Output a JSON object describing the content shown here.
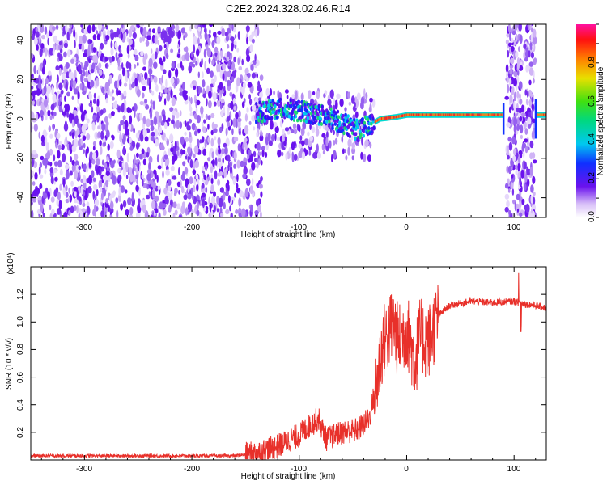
{
  "title": "C2E2.2024.328.02.46.R14",
  "colors": {
    "snr_line": "#e8302a",
    "speckle": "#6a12ee",
    "axis": "#000000"
  },
  "chart_data": [
    {
      "type": "heatmap",
      "title": "C2E2.2024.328.02.46.R14",
      "xlabel": "Height of straight line (km)",
      "ylabel": "Frequency (Hz)",
      "xlim": [
        -350,
        130
      ],
      "ylim": [
        -50,
        48
      ],
      "xticks": [
        -300,
        -200,
        -100,
        0,
        100
      ],
      "yticks": [
        -40,
        -20,
        0,
        20,
        40
      ],
      "colorbar": {
        "label": "Normalized spectral amplitude",
        "range": [
          0,
          1
        ],
        "ticks": [
          "0.0",
          "0.2",
          "0.4",
          "0.6",
          "0.8"
        ],
        "colormap": "rainbow (white/violet at 0 to magenta at 1)"
      },
      "regions": [
        {
          "x": [
            -350,
            -135
          ],
          "description": "broadband noise speckle",
          "amplitude": 0.2
        },
        {
          "x": [
            -135,
            -30
          ],
          "description": "signal trace with broad spectral spread",
          "amplitude": 0.5
        },
        {
          "x": [
            -30,
            90
          ],
          "description": "narrow carrier line",
          "amplitude": 1.0
        },
        {
          "x": [
            93,
            120
          ],
          "description": "broadband noise speckle",
          "amplitude": 0.2
        },
        {
          "x": [
            120,
            130
          ],
          "description": "narrow carrier line",
          "amplitude": 1.0
        }
      ],
      "carrier_trace": {
        "x": [
          -140,
          -120,
          -100,
          -80,
          -60,
          -45,
          -35,
          -25,
          -10,
          0,
          20,
          50,
          88,
          120,
          130
        ],
        "y": [
          3,
          5,
          4,
          2,
          -2,
          -6,
          -3,
          0,
          1,
          2,
          2,
          2,
          2,
          2,
          2
        ]
      }
    },
    {
      "type": "line",
      "xlabel": "Height of straight line (km)",
      "ylabel": "SNR (10 * v/v)",
      "y_multiplier": "(x10⁴)",
      "xlim": [
        -350,
        130
      ],
      "ylim": [
        0,
        1.4
      ],
      "xticks": [
        -300,
        -200,
        -100,
        0,
        100
      ],
      "yticks": [
        "0.2",
        "0.4",
        "0.6",
        "0.8",
        "1.0",
        "1.2"
      ],
      "series": [
        {
          "x": [
            -350,
            -250,
            -160,
            -140,
            -120,
            -110,
            -100,
            -90,
            -82,
            -75,
            -60,
            -45,
            -35,
            -28,
            -22,
            -18,
            -12,
            -8,
            0,
            8,
            12,
            20,
            30,
            40,
            60,
            80,
            100,
            110,
            120,
            130
          ],
          "y": [
            0.03,
            0.03,
            0.03,
            0.05,
            0.1,
            0.14,
            0.18,
            0.25,
            0.3,
            0.15,
            0.2,
            0.22,
            0.3,
            0.55,
            0.85,
            0.9,
            1.0,
            0.85,
            0.95,
            0.7,
            0.9,
            0.85,
            1.05,
            1.12,
            1.15,
            1.14,
            1.15,
            1.13,
            1.12,
            1.1
          ]
        }
      ]
    }
  ],
  "axis_text": {
    "top": {
      "title": "C2E2.2024.328.02.46.R14",
      "xlabel": "Height of straight line (km)",
      "ylabel": "Frequency (Hz)",
      "xticks": [
        "-300",
        "-200",
        "-100",
        "0",
        "100"
      ],
      "yticks": [
        "-40",
        "-20",
        "0",
        "20",
        "40"
      ],
      "cb_label": "Normalized spectral amplitude",
      "cb_ticks": [
        "0.0",
        "0.2",
        "0.4",
        "0.6",
        "0.8"
      ]
    },
    "bottom": {
      "xlabel": "Height of straight line (km)",
      "ylabel": "SNR (10 * v/v)",
      "multiplier": "(x10⁴)",
      "xticks": [
        "-300",
        "-200",
        "-100",
        "0",
        "100"
      ],
      "yticks": [
        "0.2",
        "0.4",
        "0.6",
        "0.8",
        "1.0",
        "1.2"
      ]
    }
  }
}
